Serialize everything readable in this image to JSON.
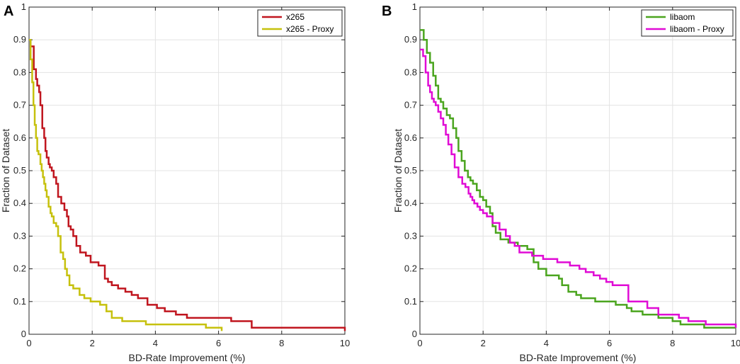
{
  "chart_data": [
    {
      "type": "line",
      "panel": "A",
      "xlabel": "BD-Rate Improvement (%)",
      "ylabel": "Fraction of Dataset",
      "xlim": [
        0,
        10
      ],
      "ylim": [
        0,
        1
      ],
      "xticks": [
        "0",
        "2",
        "4",
        "6",
        "8",
        "10"
      ],
      "yticks": [
        "0",
        "0.1",
        "0.2",
        "0.3",
        "0.4",
        "0.5",
        "0.6",
        "0.7",
        "0.8",
        "0.9",
        "1"
      ],
      "grid": true,
      "legend_position": "top-right",
      "series": [
        {
          "name": "x265",
          "color": "#c0161f",
          "x": [
            0,
            0.05,
            0.15,
            0.22,
            0.26,
            0.32,
            0.36,
            0.42,
            0.48,
            0.52,
            0.56,
            0.62,
            0.66,
            0.72,
            0.78,
            0.86,
            0.92,
            1.02,
            1.12,
            1.2,
            1.25,
            1.32,
            1.4,
            1.5,
            1.62,
            1.8,
            1.95,
            2.2,
            2.4,
            2.5,
            2.62,
            2.82,
            3.05,
            3.25,
            3.45,
            3.75,
            4.05,
            4.3,
            4.65,
            5.0,
            6.4,
            7.05,
            10
          ],
          "y": [
            0.9,
            0.88,
            0.81,
            0.78,
            0.76,
            0.74,
            0.7,
            0.63,
            0.6,
            0.56,
            0.54,
            0.52,
            0.51,
            0.5,
            0.48,
            0.46,
            0.42,
            0.4,
            0.38,
            0.36,
            0.33,
            0.32,
            0.3,
            0.27,
            0.25,
            0.24,
            0.22,
            0.21,
            0.17,
            0.16,
            0.15,
            0.14,
            0.13,
            0.12,
            0.11,
            0.09,
            0.08,
            0.07,
            0.06,
            0.05,
            0.04,
            0.02,
            0.01
          ]
        },
        {
          "name": "x265 - Proxy",
          "color": "#c6c10d",
          "x": [
            0,
            0.05,
            0.1,
            0.14,
            0.18,
            0.22,
            0.26,
            0.3,
            0.36,
            0.4,
            0.44,
            0.48,
            0.52,
            0.56,
            0.62,
            0.68,
            0.72,
            0.78,
            0.86,
            0.92,
            1.0,
            1.08,
            1.14,
            1.2,
            1.28,
            1.4,
            1.6,
            1.75,
            1.95,
            2.25,
            2.45,
            2.62,
            2.95,
            3.7,
            5.6,
            6.1
          ],
          "y": [
            0.9,
            0.84,
            0.77,
            0.7,
            0.64,
            0.6,
            0.56,
            0.55,
            0.52,
            0.5,
            0.48,
            0.46,
            0.44,
            0.42,
            0.39,
            0.37,
            0.36,
            0.34,
            0.33,
            0.3,
            0.25,
            0.23,
            0.2,
            0.18,
            0.15,
            0.14,
            0.12,
            0.11,
            0.1,
            0.09,
            0.07,
            0.05,
            0.04,
            0.03,
            0.02,
            0.01
          ]
        }
      ]
    },
    {
      "type": "line",
      "panel": "B",
      "xlabel": "BD-Rate Improvement (%)",
      "ylabel": "Fraction of Dataset",
      "xlim": [
        0,
        10
      ],
      "ylim": [
        0,
        1
      ],
      "xticks": [
        "0",
        "2",
        "4",
        "6",
        "8",
        "10"
      ],
      "yticks": [
        "0",
        "0.1",
        "0.2",
        "0.3",
        "0.4",
        "0.5",
        "0.6",
        "0.7",
        "0.8",
        "0.9",
        "1"
      ],
      "grid": true,
      "legend_position": "top-right",
      "series": [
        {
          "name": "libaom",
          "color": "#4ba51f",
          "x": [
            0,
            0.12,
            0.22,
            0.32,
            0.42,
            0.5,
            0.58,
            0.66,
            0.74,
            0.85,
            0.95,
            1.05,
            1.15,
            1.22,
            1.32,
            1.42,
            1.52,
            1.6,
            1.68,
            1.8,
            1.9,
            2.0,
            2.1,
            2.22,
            2.3,
            2.4,
            2.55,
            2.8,
            3.1,
            3.4,
            3.6,
            3.75,
            4.0,
            4.4,
            4.5,
            4.7,
            4.95,
            5.1,
            5.55,
            6.0,
            6.2,
            6.55,
            6.7,
            6.85,
            7.05,
            7.25,
            7.55,
            8.0,
            8.25,
            9.0,
            10
          ],
          "y": [
            0.93,
            0.9,
            0.86,
            0.83,
            0.79,
            0.76,
            0.72,
            0.71,
            0.69,
            0.67,
            0.66,
            0.63,
            0.6,
            0.56,
            0.53,
            0.5,
            0.48,
            0.47,
            0.46,
            0.44,
            0.42,
            0.41,
            0.39,
            0.37,
            0.33,
            0.31,
            0.29,
            0.28,
            0.27,
            0.26,
            0.22,
            0.2,
            0.18,
            0.17,
            0.15,
            0.13,
            0.12,
            0.11,
            0.1,
            0.1,
            0.09,
            0.08,
            0.07,
            0.07,
            0.06,
            0.06,
            0.05,
            0.04,
            0.03,
            0.02,
            0.02
          ]
        },
        {
          "name": "libaom - Proxy",
          "color": "#e00bd5",
          "x": [
            0,
            0.1,
            0.18,
            0.26,
            0.32,
            0.38,
            0.44,
            0.5,
            0.58,
            0.66,
            0.74,
            0.82,
            0.9,
            1.0,
            1.1,
            1.22,
            1.34,
            1.44,
            1.54,
            1.6,
            1.66,
            1.72,
            1.82,
            1.9,
            2.0,
            2.12,
            2.3,
            2.52,
            2.72,
            2.85,
            3.0,
            3.15,
            3.55,
            3.9,
            4.35,
            4.75,
            5.05,
            5.25,
            5.5,
            5.7,
            5.9,
            6.1,
            6.6,
            7.2,
            7.55,
            8.2,
            8.5,
            9.05,
            10
          ],
          "y": [
            0.87,
            0.85,
            0.8,
            0.76,
            0.74,
            0.72,
            0.71,
            0.7,
            0.68,
            0.66,
            0.64,
            0.61,
            0.58,
            0.55,
            0.51,
            0.48,
            0.46,
            0.45,
            0.43,
            0.42,
            0.41,
            0.4,
            0.39,
            0.38,
            0.37,
            0.36,
            0.34,
            0.32,
            0.3,
            0.28,
            0.27,
            0.25,
            0.24,
            0.23,
            0.22,
            0.21,
            0.2,
            0.19,
            0.18,
            0.17,
            0.16,
            0.15,
            0.1,
            0.08,
            0.06,
            0.05,
            0.04,
            0.03,
            0.02
          ]
        }
      ]
    }
  ]
}
